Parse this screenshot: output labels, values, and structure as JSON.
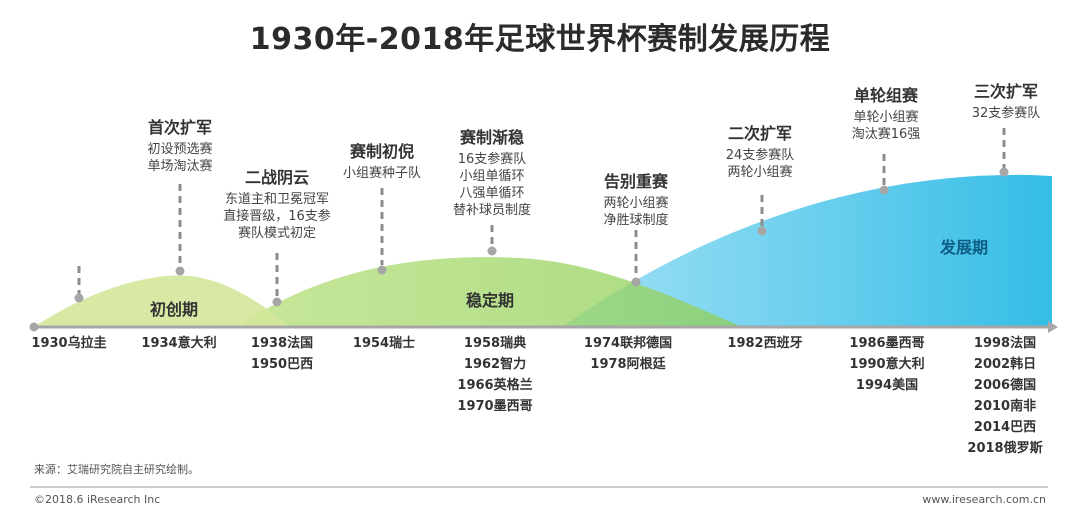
{
  "title": "1930年-2018年足球世界杯赛制发展历程",
  "phases": {
    "early": "初创期",
    "stable": "稳定期",
    "development": "发展期"
  },
  "events": [
    {
      "title": "首次扩军",
      "lines": [
        "初设预选赛",
        "单场淘汰赛"
      ]
    },
    {
      "title": "二战阴云",
      "lines": [
        "东道主和卫冕冠军",
        "直接晋级，16支参",
        "赛队模式初定"
      ]
    },
    {
      "title": "赛制初倪",
      "lines": [
        "小组赛种子队"
      ]
    },
    {
      "title": "赛制渐稳",
      "lines": [
        "16支参赛队",
        "小组单循环",
        "八强单循环",
        "替补球员制度"
      ]
    },
    {
      "title": "告别重赛",
      "lines": [
        "两轮小组赛",
        "净胜球制度"
      ]
    },
    {
      "title": "二次扩军",
      "lines": [
        "24支参赛队",
        "两轮小组赛"
      ]
    },
    {
      "title": "单轮组赛",
      "lines": [
        "单轮小组赛",
        "淘汰赛16强"
      ]
    },
    {
      "title": "三次扩军",
      "lines": [
        "32支参赛队"
      ]
    }
  ],
  "years": [
    [
      "1930乌拉圭"
    ],
    [
      "1934意大利"
    ],
    [
      "1938法国",
      "1950巴西"
    ],
    [
      "1954瑞士"
    ],
    [
      "1958瑞典",
      "1962智力",
      "1966英格兰",
      "1970墨西哥"
    ],
    [
      "1974联邦德国",
      "1978阿根廷"
    ],
    [
      "1982西班牙"
    ],
    [
      "1986墨西哥",
      "1990意大利",
      "1994美国"
    ],
    [
      "1998法国",
      "2002韩日",
      "2006德国",
      "2010南非",
      "2014巴西",
      "2018俄罗斯"
    ]
  ],
  "source": "来源：艾瑞研究院自主研究绘制。",
  "copyright": "©2018.6 iResearch Inc",
  "website": "www.iresearch.com.cn",
  "colors": {
    "early_fill": "#d6e99a",
    "stable_fill": "#a8d86f",
    "dev_fill_top": "#8ad9f2",
    "dev_fill_bottom": "#3cbfe6",
    "axis": "#a6a6a6",
    "dash": "#8c8c8c",
    "dot": "#a6a6a6"
  }
}
